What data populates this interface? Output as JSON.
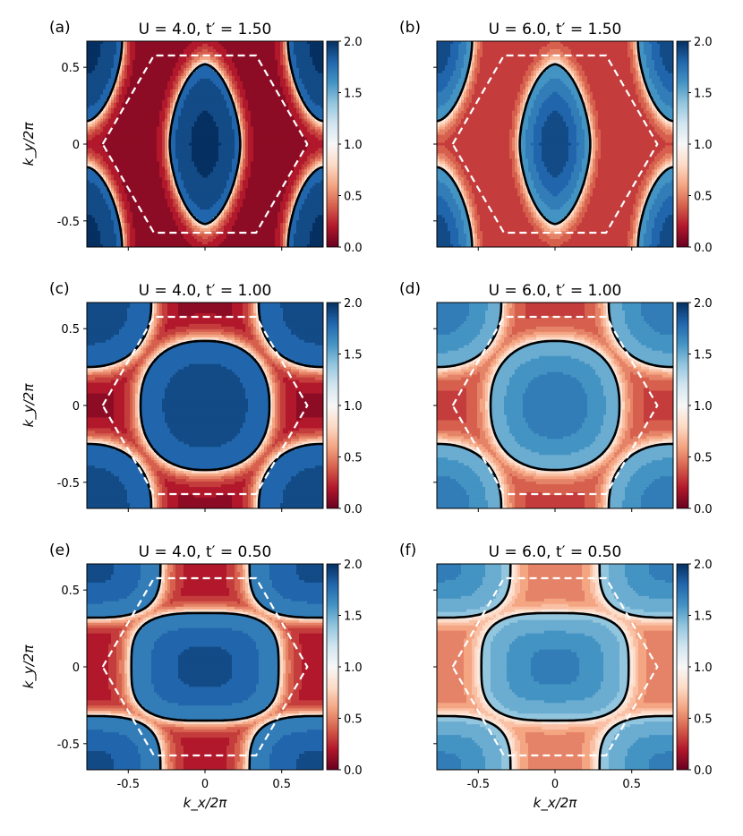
{
  "colors": {
    "colormap": [
      "#67001f",
      "#b2182b",
      "#d6604d",
      "#f4a582",
      "#fddbc7",
      "#f7f7f7",
      "#d1e5f0",
      "#92c5de",
      "#4393c3",
      "#2166ac",
      "#053061"
    ],
    "fermi_surface": "#000000",
    "brillouin_zone": "#ffffff"
  },
  "chart_data": [
    {
      "type": "heatmap",
      "panel_label": "(a)",
      "title": "U = 4.0, t′ = 1.50",
      "U": 4.0,
      "tprime": 1.5,
      "xlabel": "",
      "ylabel": "k_y/2π",
      "xlim": [
        -0.77,
        0.77
      ],
      "ylim": [
        -0.67,
        0.67
      ],
      "xticks": [
        "-0.5",
        "0",
        "0.5"
      ],
      "yticks": [
        "-0.5",
        "0",
        "0.5"
      ],
      "colorbar": {
        "min": 0.0,
        "max": 2.0,
        "ticks": [
          "0.0",
          "0.5",
          "1.0",
          "1.5",
          "2.0"
        ]
      },
      "fermi_surface": {
        "center_half_widths": [
          0.23,
          0.52
        ],
        "shape_exponent": 1.7
      },
      "occupation": {
        "inner_max": 2.0,
        "inner_min": 1.8,
        "outer": 0.08
      }
    },
    {
      "type": "heatmap",
      "panel_label": "(b)",
      "title": "U = 6.0, t′ = 1.50",
      "U": 6.0,
      "tprime": 1.5,
      "xlabel": "",
      "ylabel": "",
      "xlim": [
        -0.77,
        0.77
      ],
      "ylim": [
        -0.67,
        0.67
      ],
      "xticks": [
        "-0.5",
        "0",
        "0.5"
      ],
      "yticks": [
        "-0.5",
        "0",
        "0.5"
      ],
      "colorbar": {
        "min": 0.0,
        "max": 2.0,
        "ticks": [
          "0.0",
          "0.5",
          "1.0",
          "1.5",
          "2.0"
        ]
      },
      "fermi_surface": {
        "center_half_widths": [
          0.23,
          0.52
        ],
        "shape_exponent": 1.7
      },
      "occupation": {
        "inner_max": 1.95,
        "inner_min": 1.55,
        "outer": 0.25
      }
    },
    {
      "type": "heatmap",
      "panel_label": "(c)",
      "title": "U = 4.0, t′ = 1.00",
      "U": 4.0,
      "tprime": 1.0,
      "xlabel": "",
      "ylabel": "k_y/2π",
      "xlim": [
        -0.77,
        0.77
      ],
      "ylim": [
        -0.67,
        0.67
      ],
      "xticks": [
        "-0.5",
        "0",
        "0.5"
      ],
      "yticks": [
        "-0.5",
        "0",
        "0.5"
      ],
      "colorbar": {
        "min": 0.0,
        "max": 2.0,
        "ticks": [
          "0.0",
          "0.5",
          "1.0",
          "1.5",
          "2.0"
        ]
      },
      "fermi_surface": {
        "center_half_widths": [
          0.42,
          0.42
        ],
        "shape_exponent": 2.3
      },
      "occupation": {
        "inner_max": 1.95,
        "inner_min": 1.75,
        "outer": 0.1
      }
    },
    {
      "type": "heatmap",
      "panel_label": "(d)",
      "title": "U = 6.0, t′ = 1.00",
      "U": 6.0,
      "tprime": 1.0,
      "xlabel": "",
      "ylabel": "",
      "xlim": [
        -0.77,
        0.77
      ],
      "ylim": [
        -0.67,
        0.67
      ],
      "xticks": [
        "-0.5",
        "0",
        "0.5"
      ],
      "yticks": [
        "-0.5",
        "0",
        "0.5"
      ],
      "colorbar": {
        "min": 0.0,
        "max": 2.0,
        "ticks": [
          "0.0",
          "0.5",
          "1.0",
          "1.5",
          "2.0"
        ]
      },
      "fermi_surface": {
        "center_half_widths": [
          0.42,
          0.42
        ],
        "shape_exponent": 2.3
      },
      "occupation": {
        "inner_max": 1.75,
        "inner_min": 1.45,
        "outer": 0.3
      }
    },
    {
      "type": "heatmap",
      "panel_label": "(e)",
      "title": "U = 4.0, t′ = 0.50",
      "U": 4.0,
      "tprime": 0.5,
      "xlabel": "k_x/2π",
      "ylabel": "k_y/2π",
      "xlim": [
        -0.77,
        0.77
      ],
      "ylim": [
        -0.67,
        0.67
      ],
      "xticks": [
        "-0.5",
        "0",
        "0.5"
      ],
      "yticks": [
        "-0.5",
        "0",
        "0.5"
      ],
      "colorbar": {
        "min": 0.0,
        "max": 2.0,
        "ticks": [
          "0.0",
          "0.5",
          "1.0",
          "1.5",
          "2.0"
        ]
      },
      "fermi_surface": {
        "center_half_widths": [
          0.48,
          0.35
        ],
        "shape_exponent": 3.2
      },
      "occupation": {
        "inner_max": 1.9,
        "inner_min": 1.65,
        "outer": 0.15
      }
    },
    {
      "type": "heatmap",
      "panel_label": "(f)",
      "title": "U = 6.0, t′ = 0.50",
      "U": 6.0,
      "tprime": 0.5,
      "xlabel": "k_x/2π",
      "ylabel": "",
      "xlim": [
        -0.77,
        0.77
      ],
      "ylim": [
        -0.67,
        0.67
      ],
      "xticks": [
        "-0.5",
        "0",
        "0.5"
      ],
      "yticks": [
        "-0.5",
        "0",
        "0.5"
      ],
      "colorbar": {
        "min": 0.0,
        "max": 2.0,
        "ticks": [
          "0.0",
          "0.5",
          "1.0",
          "1.5",
          "2.0"
        ]
      },
      "fermi_surface": {
        "center_half_widths": [
          0.48,
          0.35
        ],
        "shape_exponent": 3.2
      },
      "occupation": {
        "inner_max": 1.7,
        "inner_min": 1.4,
        "outer": 0.45
      }
    }
  ]
}
